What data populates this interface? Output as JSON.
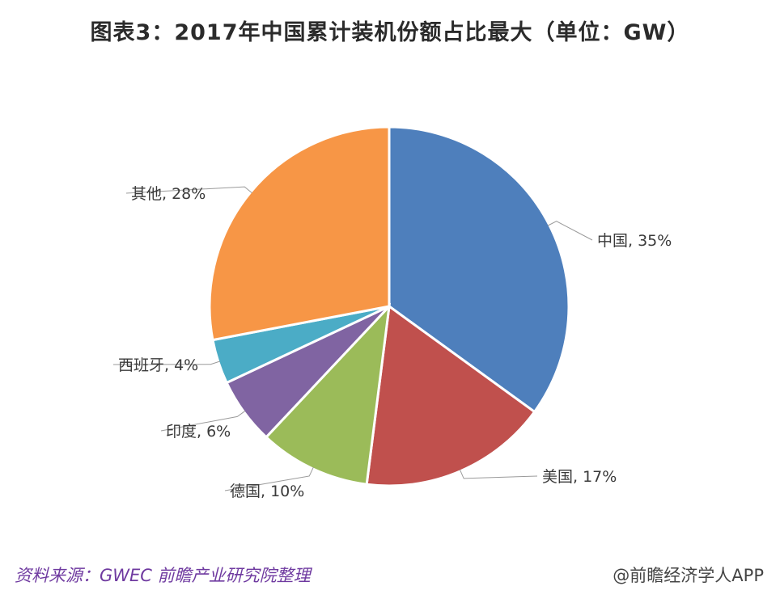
{
  "title": "图表3：2017年中国累计装机份额占比最大（单位：GW）",
  "source": "资料来源：GWEC 前瞻产业研究院整理",
  "credit": "@前瞻经济学人APP",
  "chart_data": {
    "type": "pie",
    "title": "图表3：2017年中国累计装机份额占比最大（单位：GW）",
    "unit": "GW",
    "slices": [
      {
        "label": "中国",
        "value": 35,
        "display": "中国, 35%",
        "color": "#4e7fbc"
      },
      {
        "label": "美国",
        "value": 17,
        "display": "美国, 17%",
        "color": "#c0504d"
      },
      {
        "label": "德国",
        "value": 10,
        "display": "德国, 10%",
        "color": "#9bbb59"
      },
      {
        "label": "印度",
        "value": 6,
        "display": "印度, 6%",
        "color": "#8064a2"
      },
      {
        "label": "西班牙",
        "value": 4,
        "display": "西班牙, 4%",
        "color": "#4bacc6"
      },
      {
        "label": "其他",
        "value": 28,
        "display": "其他, 28%",
        "color": "#f79646"
      }
    ]
  }
}
